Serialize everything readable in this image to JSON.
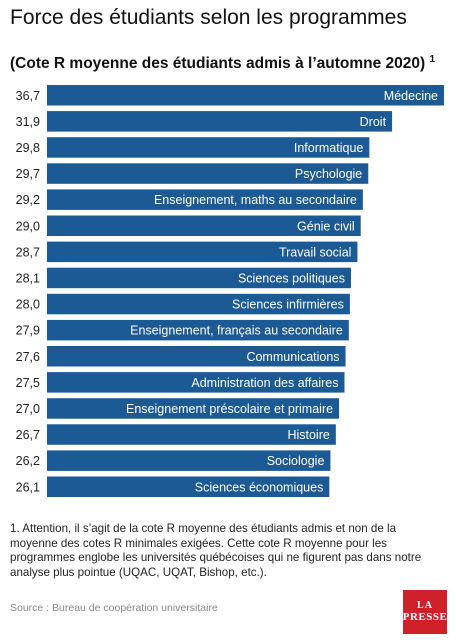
{
  "header": {
    "title": "Force des étudiants selon les programmes",
    "subtitle": "(Cote R moyenne des étudiants admis à l’automne 2020)",
    "subtitle_note": "1"
  },
  "chart_data": {
    "type": "bar",
    "orientation": "horizontal",
    "categories": [
      "Médecine",
      "Droit",
      "Informatique",
      "Psychologie",
      "Enseignement, maths au secondaire",
      "Génie civil",
      "Travail social",
      "Sciences politiques",
      "Sciences infirmières",
      "Enseignement, français au secondaire",
      "Communications",
      "Administration des affaires",
      "Enseignement préscolaire et primaire",
      "Histoire",
      "Sociologie",
      "Sciences économiques"
    ],
    "values": [
      36.7,
      31.9,
      29.8,
      29.7,
      29.2,
      29.0,
      28.7,
      28.1,
      28.0,
      27.9,
      27.6,
      27.5,
      27.0,
      26.7,
      26.2,
      26.1
    ],
    "value_labels": [
      "36,7",
      "31,9",
      "29,8",
      "29,7",
      "29,2",
      "29,0",
      "28,7",
      "28,1",
      "28,0",
      "27,9",
      "27,6",
      "27,5",
      "27,0",
      "26,7",
      "26,2",
      "26,1"
    ],
    "bar_color": "#1c5a95",
    "label_color": "#ffffff"
  },
  "footnote": "1. Attention, il s’agit de la cote R moyenne des étudiants admis et non de la moyenne des cotes R minimales exigées. Cette cote R moyenne pour les programmes englobe les universités québécoises qui ne figurent pas dans notre analyse plus pointue (UQAC, UQAT, Bishop, etc.).",
  "source": "Source : Bureau de coopération universitaire",
  "logo": {
    "line1": "LA",
    "line2": "PRESSE",
    "color": "#d0202a"
  }
}
